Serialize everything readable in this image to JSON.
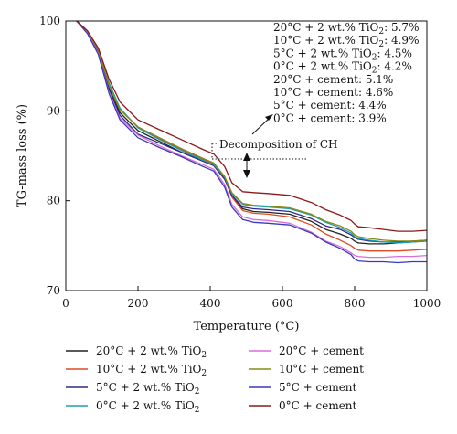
{
  "chart_data": {
    "type": "line",
    "xlabel": "Temperature (°C)",
    "ylabel": "TG-mass loss (%)",
    "xlim": [
      0,
      1000
    ],
    "ylim": [
      70,
      100
    ],
    "xticks": [
      0,
      200,
      400,
      600,
      800,
      1000
    ],
    "yticks": [
      70,
      80,
      90,
      100
    ],
    "grid": false,
    "legend_placement": "bottom",
    "x": [
      30,
      60,
      90,
      120,
      150,
      200,
      260,
      320,
      380,
      410,
      440,
      460,
      490,
      520,
      560,
      620,
      680,
      720,
      760,
      790,
      800,
      810,
      840,
      880,
      920,
      960,
      1000
    ],
    "series": [
      {
        "name": "20°C + 2 wt.% TiO2",
        "name_parts": [
          "20°C + 2 wt.% TiO",
          "2"
        ],
        "color": "#222222",
        "values": [
          100,
          98.8,
          96.6,
          92.5,
          89.8,
          87.8,
          86.6,
          85.4,
          84.4,
          83.9,
          82.4,
          80.6,
          79.1,
          78.8,
          78.7,
          78.5,
          77.7,
          76.8,
          76.3,
          75.8,
          75.5,
          75.3,
          75.2,
          75.2,
          75.3,
          75.4,
          75.5
        ]
      },
      {
        "name": "10°C + 2 wt.% TiO2",
        "name_parts": [
          "10°C + 2 wt.% TiO",
          "2"
        ],
        "color": "#e04a24",
        "values": [
          100,
          98.8,
          96.8,
          92.9,
          90.2,
          88.2,
          86.9,
          85.7,
          84.6,
          84.1,
          82.5,
          80.4,
          78.9,
          78.6,
          78.5,
          78.2,
          77.3,
          76.3,
          75.6,
          75.0,
          74.7,
          74.5,
          74.4,
          74.4,
          74.4,
          74.5,
          74.6
        ]
      },
      {
        "name": "5°C + 2 wt.% TiO2",
        "name_parts": [
          "5°C + 2 wt.% TiO",
          "2"
        ],
        "color": "#2e2a8c",
        "values": [
          100,
          98.9,
          96.7,
          92.4,
          89.5,
          87.4,
          86.4,
          85.4,
          84.4,
          83.9,
          82.4,
          80.6,
          79.3,
          79.1,
          79.0,
          78.8,
          78.0,
          77.2,
          76.8,
          76.2,
          75.9,
          75.7,
          75.5,
          75.4,
          75.4,
          75.5,
          75.6
        ]
      },
      {
        "name": "0°C + 2 wt.% TiO2",
        "name_parts": [
          "0°C + 2 wt.% TiO",
          "2"
        ],
        "color": "#1a9fb5",
        "values": [
          100,
          98.8,
          96.9,
          93.1,
          90.3,
          88.1,
          86.8,
          85.6,
          84.5,
          84.0,
          82.6,
          80.8,
          79.6,
          79.4,
          79.3,
          79.1,
          78.4,
          77.6,
          77.0,
          76.4,
          76.0,
          75.8,
          75.6,
          75.4,
          75.3,
          75.4,
          75.5
        ]
      },
      {
        "name": "20°C + cement",
        "color": "#d96fd9",
        "values": [
          100,
          98.7,
          96.4,
          92.0,
          89.2,
          87.3,
          86.1,
          85.0,
          84.0,
          83.5,
          81.8,
          79.6,
          78.2,
          77.9,
          77.8,
          77.5,
          76.5,
          75.5,
          74.9,
          74.2,
          73.9,
          73.8,
          73.7,
          73.7,
          73.8,
          73.8,
          73.9
        ]
      },
      {
        "name": "10°C + cement",
        "color": "#8a8a12",
        "values": [
          100,
          98.9,
          96.8,
          92.8,
          90.1,
          88.2,
          87.0,
          85.8,
          84.7,
          84.2,
          82.7,
          80.9,
          79.7,
          79.5,
          79.4,
          79.2,
          78.5,
          77.7,
          77.2,
          76.6,
          76.2,
          76.0,
          75.8,
          75.6,
          75.5,
          75.5,
          75.6
        ]
      },
      {
        "name": "5°C + cement",
        "color": "#3a3ab8",
        "values": [
          100,
          98.6,
          96.3,
          91.9,
          89.0,
          87.0,
          85.9,
          84.9,
          83.8,
          83.3,
          81.5,
          79.3,
          77.9,
          77.6,
          77.5,
          77.3,
          76.4,
          75.4,
          74.7,
          74.0,
          73.5,
          73.3,
          73.2,
          73.2,
          73.1,
          73.2,
          73.2
        ]
      },
      {
        "name": "0°C + cement",
        "color": "#8b1a1a",
        "values": [
          100,
          98.9,
          97.0,
          93.5,
          91.0,
          89.0,
          87.9,
          86.8,
          85.7,
          85.2,
          83.8,
          82.0,
          81.0,
          80.9,
          80.8,
          80.6,
          79.8,
          79.0,
          78.4,
          77.8,
          77.4,
          77.1,
          77.0,
          76.8,
          76.6,
          76.6,
          76.7
        ]
      }
    ],
    "annotation": {
      "lines": [
        {
          "parts": [
            "20°C + 2 wt.% TiO",
            "2",
            ": 5.7%"
          ]
        },
        {
          "parts": [
            "10°C + 2 wt.% TiO",
            "2",
            ": 4.9%"
          ]
        },
        {
          "parts": [
            "5°C + 2 wt.% TiO",
            "2",
            ": 4.5%"
          ]
        },
        {
          "parts": [
            "0°C + 2 wt.% TiO",
            "2",
            ": 4.2%"
          ]
        },
        {
          "parts": [
            "20°C + cement: 5.1%"
          ]
        },
        {
          "parts": [
            "10°C + cement: 4.6%"
          ]
        },
        {
          "parts": [
            "5°C + cement: 4.4%"
          ]
        },
        {
          "parts": [
            "0°C + cement: 3.9%"
          ]
        }
      ],
      "callout": "Decomposition of CH"
    }
  }
}
